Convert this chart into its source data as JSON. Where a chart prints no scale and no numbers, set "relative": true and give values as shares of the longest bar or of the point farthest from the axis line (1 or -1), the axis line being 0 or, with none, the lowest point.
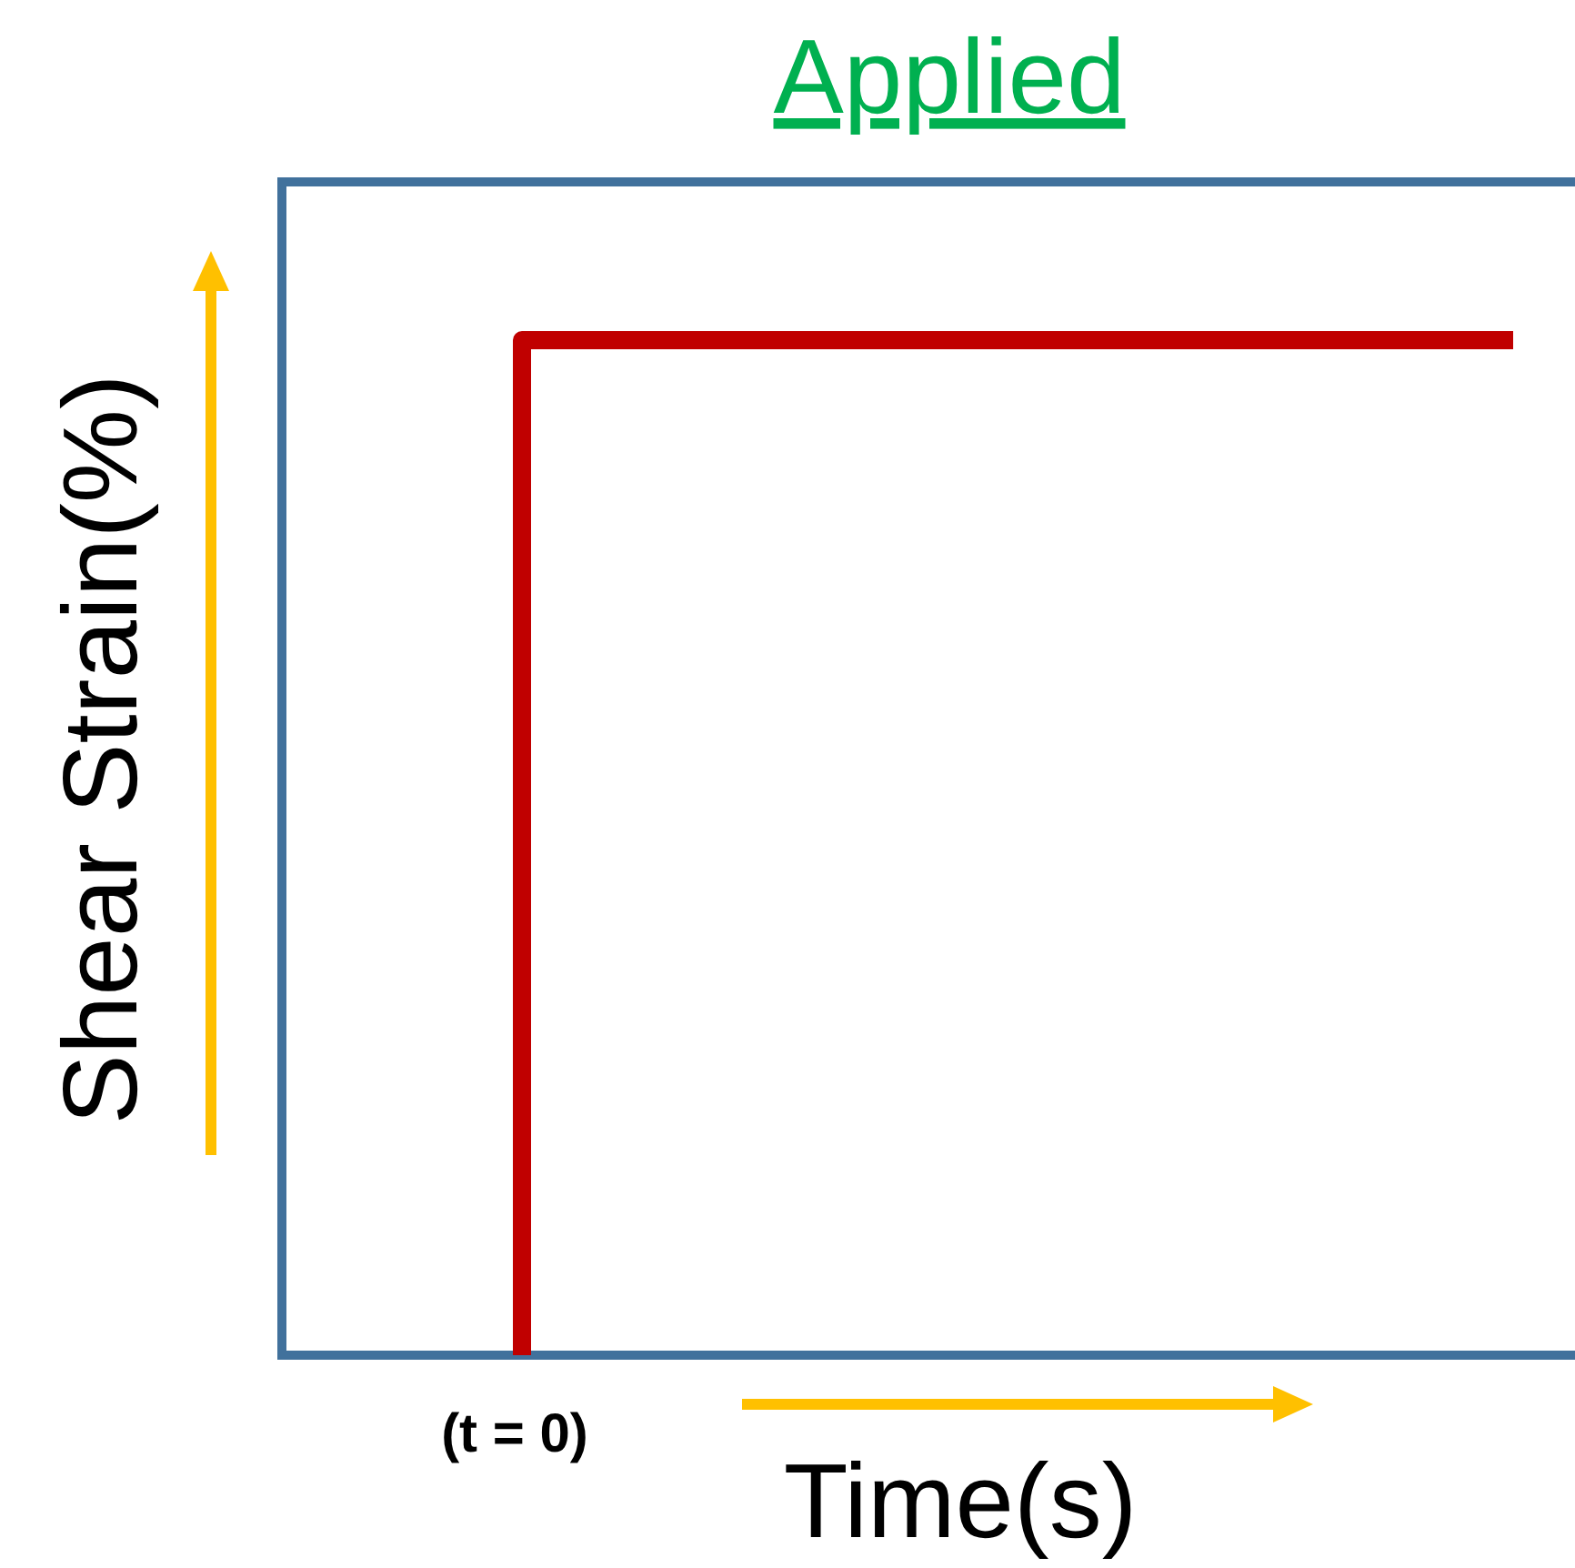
{
  "chart_data": {
    "type": "step",
    "title": "Applied",
    "xlabel": "Time(s)",
    "ylabel": "Shear Strain(%)",
    "relative": true,
    "categories": [
      null,
      null,
      null,
      null,
      null
    ],
    "annotations": [
      "(t = 0)"
    ],
    "series": [
      {
        "color": "#c00000",
        "values": [
          0,
          1,
          1,
          1,
          1
        ]
      }
    ]
  }
}
